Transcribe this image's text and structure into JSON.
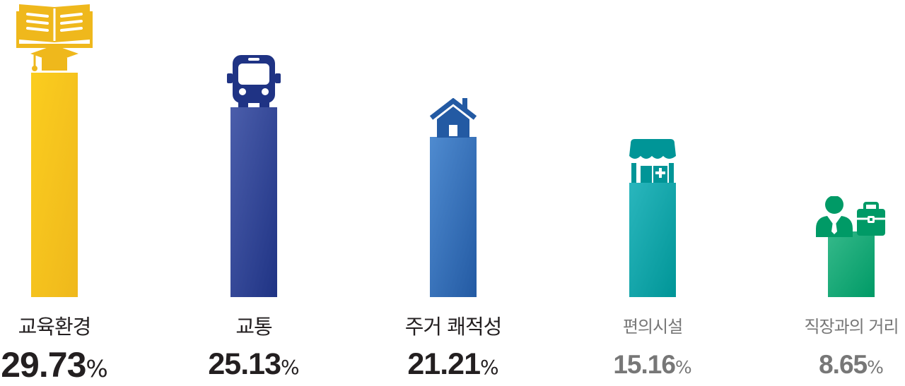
{
  "chart_data": {
    "type": "bar",
    "categories": [
      "교육환경",
      "교통",
      "주거 쾌적성",
      "편의시설",
      "직장과의 거리"
    ],
    "values": [
      29.73,
      25.13,
      21.21,
      15.16,
      8.65
    ],
    "value_labels": [
      "29.73",
      "25.13",
      "21.21",
      "15.16",
      "8.65"
    ],
    "unit": "%",
    "title": "",
    "xlabel": "",
    "ylabel": "",
    "ylim": [
      0,
      32
    ],
    "grid": false,
    "legend": "none",
    "icons": [
      "open-book-graduation-cap-icon",
      "bus-icon",
      "house-icon",
      "pharmacy-store-icon",
      "businessman-briefcase-icon"
    ],
    "bar_colors": [
      [
        "#fbcd1f",
        "#efb81c"
      ],
      [
        "#4b5eab",
        "#1f3384"
      ],
      [
        "#4f8bd0",
        "#235aa3"
      ],
      [
        "#2ab6bd",
        "#009597"
      ],
      [
        "#35b98a",
        "#009a66"
      ]
    ],
    "label_colors": [
      "#231f20",
      "#231f20",
      "#231f20",
      "#777777",
      "#777777"
    ]
  }
}
